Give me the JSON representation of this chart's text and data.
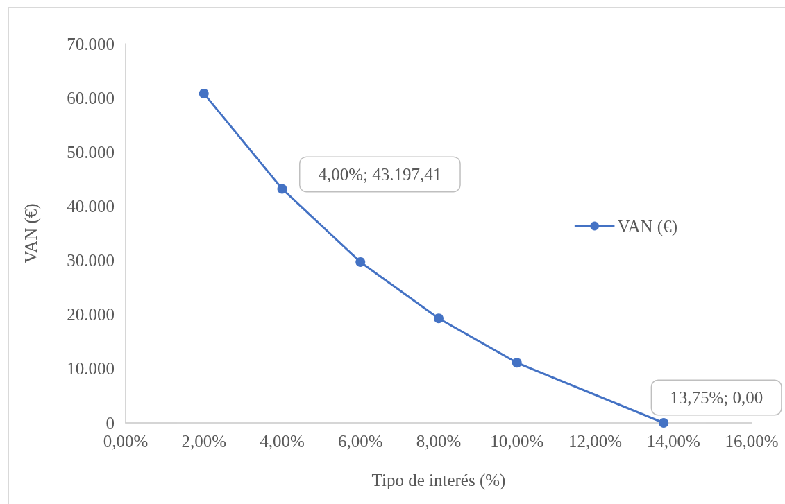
{
  "chart_data": {
    "type": "line",
    "xlabel": "Tipo de interés (%)",
    "ylabel": "VAN (€)",
    "series": [
      {
        "name": "VAN (€)",
        "color": "#4472c4",
        "x": [
          2,
          4,
          6,
          8,
          10,
          13.75
        ],
        "values": [
          60800,
          43197.41,
          29700,
          19300,
          11100,
          0
        ],
        "value_labels": [
          null,
          "4,00%; 43.197,41",
          null,
          null,
          null,
          "13,75%; 0,00"
        ]
      }
    ],
    "xlim": [
      0,
      16
    ],
    "xticks": [
      {
        "value": 0,
        "label": "0,00%"
      },
      {
        "value": 2,
        "label": "2,00%"
      },
      {
        "value": 4,
        "label": "4,00%"
      },
      {
        "value": 6,
        "label": "6,00%"
      },
      {
        "value": 8,
        "label": "8,00%"
      },
      {
        "value": 10,
        "label": "10,00%"
      },
      {
        "value": 12,
        "label": "12,00%"
      },
      {
        "value": 14,
        "label": "14,00%"
      },
      {
        "value": 16,
        "label": "16,00%"
      }
    ],
    "ylim": [
      0,
      70000
    ],
    "yticks": [
      0,
      {
        "value": 10000,
        "label": "10.000"
      },
      {
        "value": 20000,
        "label": "20.000"
      },
      {
        "value": 30000,
        "label": "30.000"
      },
      {
        "value": 40000,
        "label": "40.000"
      },
      {
        "value": 50000,
        "label": "50.000"
      },
      {
        "value": 60000,
        "label": "60.000"
      },
      {
        "value": 70000,
        "label": "70.000"
      }
    ],
    "legend": "right",
    "marker": "circle",
    "line_style": "solid"
  }
}
